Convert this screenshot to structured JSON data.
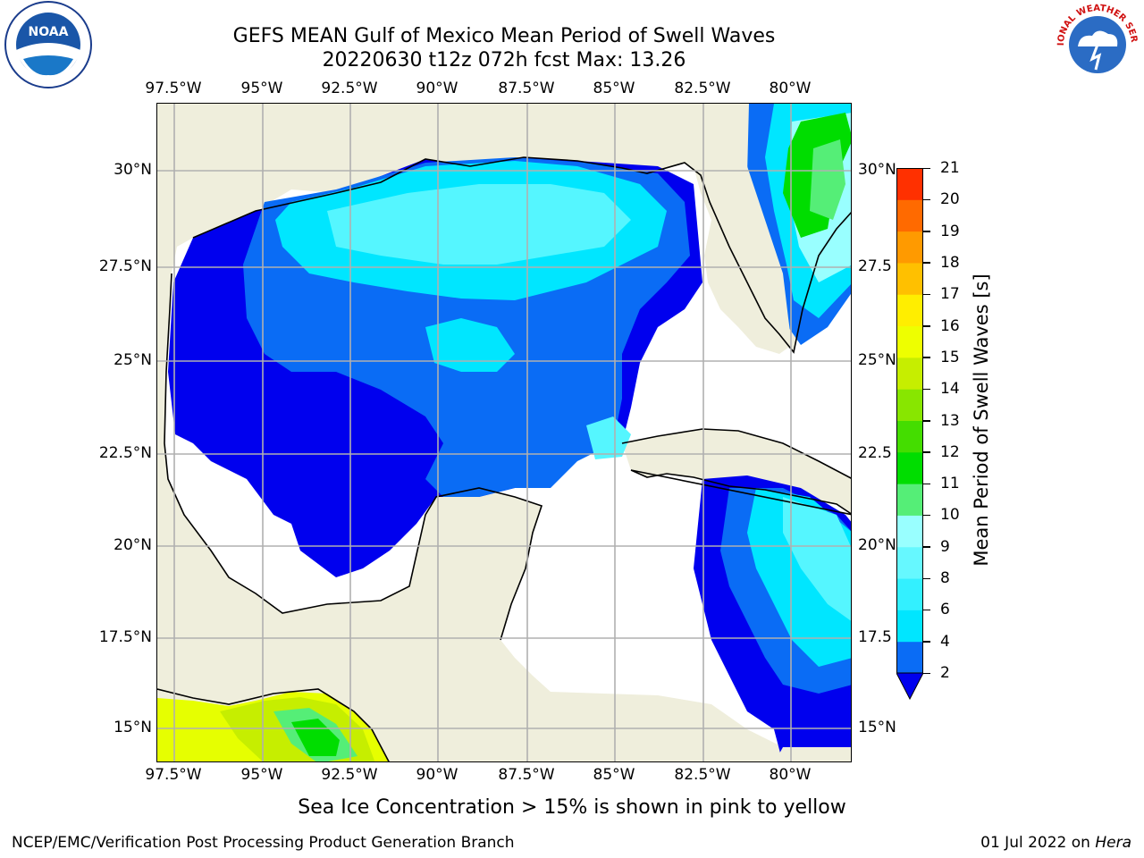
{
  "title": {
    "line1": "GEFS MEAN Gulf of Mexico Mean Period of Swell Waves",
    "line2": "20220630 t12z 072h fcst   Max: 13.26"
  },
  "axes": {
    "lon_top": [
      "97.5°W",
      "95°W",
      "92.5°W",
      "90°W",
      "87.5°W",
      "85°W",
      "82.5°W",
      "80°W"
    ],
    "lon_bottom": [
      "97.5°W",
      "95°W",
      "92.5°W",
      "90°W",
      "87.5°W",
      "85°W",
      "82.5°W",
      "80°W"
    ],
    "lat_left": [
      "30°N",
      "27.5°N",
      "25°N",
      "22.5°N",
      "20°N",
      "17.5°N",
      "15°N"
    ],
    "lat_right": [
      "30°N",
      "27.5",
      "25°N",
      "22.5",
      "20°N",
      "17.5",
      "15°N"
    ]
  },
  "colorbar": {
    "label": "Mean Period of Swell Waves [s]",
    "ticks": [
      "2",
      "4",
      "6",
      "8",
      "9",
      "10",
      "11",
      "12",
      "13",
      "14",
      "15",
      "16",
      "17",
      "18",
      "19",
      "20",
      "21"
    ],
    "colors": [
      "#0a6cf5",
      "#00e6ff",
      "#33f0ff",
      "#66f8ff",
      "#99ffff",
      "#55ee77",
      "#00dd00",
      "#44dd00",
      "#88e600",
      "#c6ee00",
      "#eeff00",
      "#ffee00",
      "#ffc000",
      "#ff9a00",
      "#ff6a00",
      "#ff3000"
    ],
    "extend_color": "#0000ee"
  },
  "legend_colors": {
    "land": "#efeedc",
    "deep_blue": "#0000ee",
    "blue": "#0a6cf5",
    "cyan": "#00e6ff",
    "light_cyan": "#55f6ff",
    "pale_cyan": "#99ffff",
    "green_light": "#55ee77",
    "green": "#00dd00",
    "lime": "#c6ee00",
    "yellow": "#e6ff00",
    "grid": "#b0b0b0"
  },
  "note": "Sea Ice Concentration > 15% is shown in pink to yellow",
  "footer": {
    "left": "NCEP/EMC/Verification Post Processing Product Generation Branch",
    "right_date": "01 Jul 2022 on ",
    "right_host": "Hera"
  },
  "logos": {
    "left": "noaa-logo",
    "right": "national-weather-service-logo",
    "noaa_text": "NOAA",
    "nws_text": "NATIONAL WEATHER SERVICE"
  }
}
